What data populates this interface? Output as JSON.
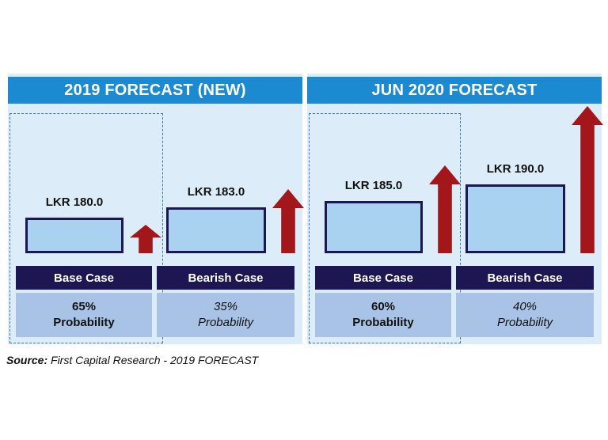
{
  "chart_data": {
    "type": "bar",
    "panels": [
      {
        "title": "2019 FORECAST (NEW)",
        "cases": [
          {
            "case": "Base Case",
            "value": 180.0,
            "label": "LKR 180.0",
            "probability": "65%",
            "prob_word": "Probability",
            "style": "bold",
            "highlighted": true
          },
          {
            "case": "Bearish Case",
            "value": 183.0,
            "label": "LKR 183.0",
            "probability": "35%",
            "prob_word": "Probability",
            "style": "italic",
            "highlighted": false
          }
        ]
      },
      {
        "title": "JUN 2020 FORECAST",
        "cases": [
          {
            "case": "Base Case",
            "value": 185.0,
            "label": "LKR 185.0",
            "probability": "60%",
            "prob_word": "Probability",
            "style": "bold",
            "highlighted": true
          },
          {
            "case": "Bearish Case",
            "value": 190.0,
            "label": "LKR 190.0",
            "probability": "40%",
            "prob_word": "Probability",
            "style": "italic",
            "highlighted": false
          }
        ]
      }
    ],
    "colors": {
      "header": "#1b8ad0",
      "box_fill": "#a9d1f0",
      "box_border": "#1c1752",
      "case_bar": "#1c1752",
      "prob_fill": "#a9c3e6",
      "arrow": "#a3171b",
      "panel_bg": "#dcecf9"
    }
  },
  "source": {
    "prefix": "Source:",
    "text": " First Capital Research - 2019 FORECAST"
  }
}
